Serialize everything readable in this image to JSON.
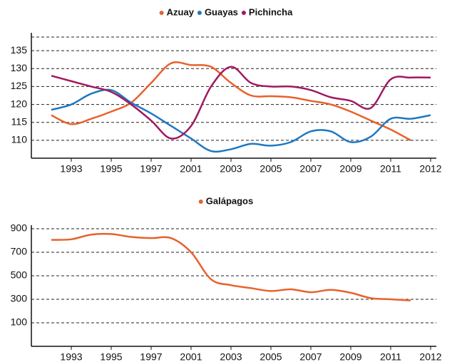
{
  "charts": [
    {
      "chart_data": {
        "type": "line",
        "categories": [
          null,
          "1993",
          null,
          "1995",
          null,
          "1997",
          null,
          "2001",
          null,
          "2003",
          null,
          "2005",
          null,
          "2007",
          null,
          "2009",
          null,
          "2011",
          null,
          "2012"
        ],
        "series": [
          {
            "name": "Azuay",
            "color": "#e8612c",
            "values": [
              117,
              114.5,
              116,
              118,
              120.5,
              126,
              131.5,
              131,
              130.5,
              126,
              122.5,
              122.3,
              122,
              121,
              120,
              118,
              115.5,
              113,
              110,
              null
            ]
          },
          {
            "name": "Guayas",
            "color": "#1f78c1",
            "values": [
              118.5,
              120,
              123,
              124,
              120.5,
              117.5,
              114,
              110.5,
              107,
              107.5,
              109,
              108.5,
              109.5,
              112.5,
              112.5,
              109.5,
              111,
              116,
              116,
              117
            ]
          },
          {
            "name": "Pichincha",
            "color": "#a0195f",
            "values": [
              128,
              126.5,
              125,
              123.5,
              120,
              115.5,
              110.5,
              114,
              125,
              130.5,
              126,
              125,
              125,
              124,
              122,
              121,
              119,
              127,
              127.5,
              127.5
            ]
          }
        ],
        "ylim": [
          105,
          140
        ],
        "yticks": [
          110,
          115,
          120,
          125,
          130,
          135
        ],
        "grid": true
      }
    },
    {
      "chart_data": {
        "type": "line",
        "categories": [
          null,
          "1993",
          null,
          "1995",
          null,
          "1997",
          null,
          "2001",
          null,
          "2003",
          null,
          "2005",
          null,
          "2007",
          null,
          "2009",
          null,
          "2011",
          null,
          "2012"
        ],
        "series": [
          {
            "name": "Galápagos",
            "color": "#e8612c",
            "values": [
              805,
              810,
              850,
              855,
              830,
              820,
              820,
              700,
              470,
              420,
              395,
              370,
              385,
              360,
              380,
              355,
              310,
              300,
              290,
              null
            ]
          }
        ],
        "ylim": [
          -100,
          930
        ],
        "yticks": [
          100,
          300,
          500,
          700,
          900
        ],
        "grid": true
      }
    }
  ]
}
